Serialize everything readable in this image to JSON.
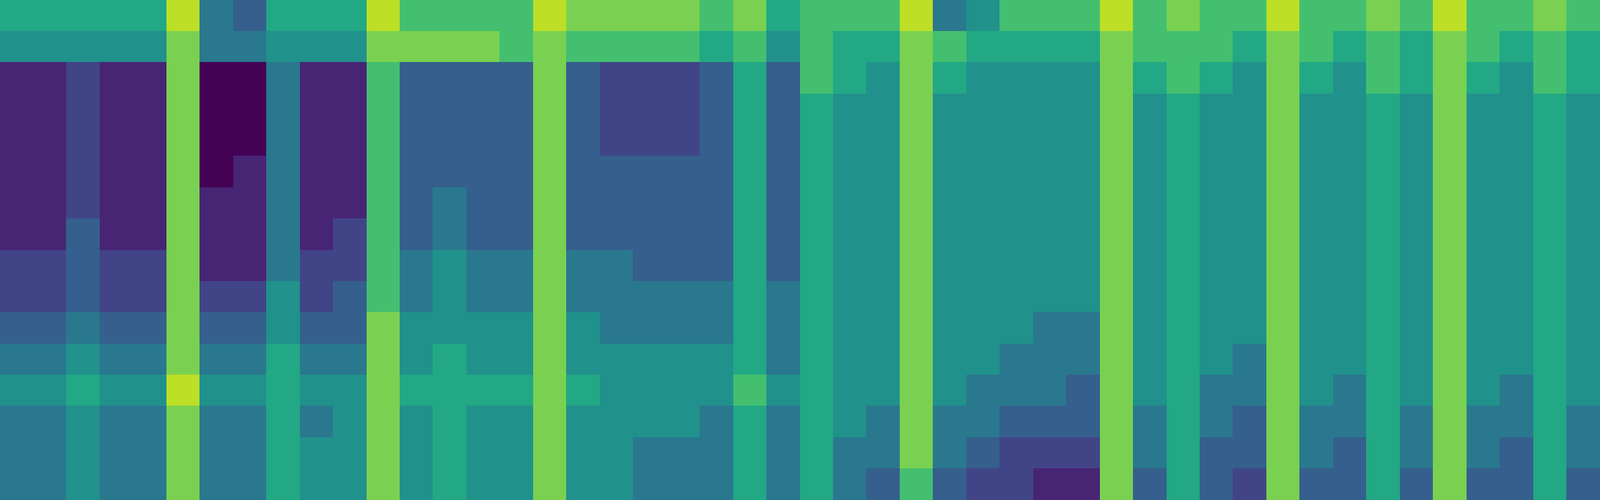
{
  "chart_data": {
    "type": "heatmap",
    "color": "viridis",
    "tick_labels": false,
    "zlim": [
      0,
      10
    ],
    "cells": [
      [
        6,
        5,
        1,
        1,
        1,
        1,
        1,
        1,
        2,
        2,
        3,
        4,
        5,
        4,
        4,
        4
      ],
      [
        6,
        5,
        1,
        1,
        1,
        1,
        1,
        1,
        2,
        2,
        3,
        4,
        5,
        4,
        4,
        4
      ],
      [
        6,
        5,
        2,
        2,
        2,
        2,
        2,
        3,
        3,
        3,
        4,
        5,
        6,
        5,
        5,
        5
      ],
      [
        6,
        5,
        1,
        1,
        1,
        1,
        1,
        1,
        2,
        2,
        3,
        4,
        5,
        4,
        4,
        4
      ],
      [
        6,
        5,
        1,
        1,
        1,
        1,
        1,
        1,
        2,
        2,
        3,
        4,
        5,
        4,
        4,
        4
      ],
      [
        9,
        8,
        8,
        8,
        8,
        8,
        8,
        8,
        8,
        8,
        8,
        8,
        9,
        8,
        8,
        8
      ],
      [
        4,
        4,
        0,
        0,
        0,
        0,
        1,
        1,
        1,
        2,
        3,
        4,
        5,
        4,
        4,
        4
      ],
      [
        3,
        4,
        0,
        0,
        0,
        1,
        1,
        1,
        1,
        2,
        3,
        4,
        5,
        4,
        4,
        4
      ],
      [
        6,
        5,
        4,
        4,
        4,
        4,
        4,
        4,
        4,
        5,
        5,
        6,
        6,
        6,
        6,
        6
      ],
      [
        6,
        5,
        1,
        1,
        1,
        1,
        1,
        1,
        2,
        2,
        3,
        4,
        5,
        4,
        5,
        5
      ],
      [
        6,
        5,
        1,
        1,
        1,
        1,
        1,
        2,
        2,
        3,
        3,
        4,
        5,
        5,
        5,
        5
      ],
      [
        9,
        8,
        7,
        7,
        7,
        7,
        7,
        7,
        7,
        7,
        8,
        8,
        8,
        8,
        8,
        8
      ],
      [
        7,
        8,
        3,
        3,
        3,
        3,
        3,
        3,
        4,
        4,
        5,
        5,
        6,
        5,
        5,
        5
      ],
      [
        7,
        8,
        3,
        3,
        3,
        3,
        4,
        4,
        5,
        5,
        5,
        6,
        6,
        6,
        6,
        6
      ],
      [
        7,
        8,
        3,
        3,
        3,
        3,
        3,
        3,
        4,
        4,
        5,
        5,
        6,
        5,
        5,
        5
      ],
      [
        7,
        7,
        3,
        3,
        3,
        3,
        3,
        3,
        4,
        4,
        5,
        5,
        6,
        5,
        5,
        5
      ],
      [
        9,
        8,
        8,
        8,
        8,
        8,
        8,
        8,
        8,
        8,
        8,
        8,
        8,
        8,
        8,
        8
      ],
      [
        8,
        7,
        3,
        3,
        3,
        3,
        3,
        3,
        4,
        4,
        5,
        5,
        6,
        5,
        5,
        5
      ],
      [
        8,
        7,
        2,
        2,
        2,
        3,
        3,
        3,
        4,
        4,
        4,
        5,
        5,
        5,
        5,
        5
      ],
      [
        8,
        7,
        2,
        2,
        2,
        3,
        3,
        3,
        3,
        4,
        4,
        5,
        5,
        5,
        4,
        4
      ],
      [
        8,
        7,
        2,
        2,
        2,
        3,
        3,
        3,
        3,
        4,
        4,
        5,
        5,
        5,
        4,
        4
      ],
      [
        7,
        6,
        3,
        3,
        3,
        3,
        3,
        3,
        3,
        4,
        4,
        5,
        5,
        4,
        4,
        4
      ],
      [
        8,
        7,
        6,
        6,
        6,
        6,
        6,
        6,
        6,
        6,
        6,
        6,
        7,
        6,
        6,
        6
      ],
      [
        6,
        5,
        3,
        3,
        3,
        3,
        3,
        3,
        3,
        4,
        4,
        4,
        5,
        4,
        4,
        4
      ],
      [
        7,
        7,
        7,
        6,
        6,
        6,
        6,
        6,
        6,
        6,
        6,
        6,
        6,
        6,
        6,
        6
      ],
      [
        7,
        6,
        6,
        5,
        5,
        5,
        5,
        5,
        5,
        5,
        5,
        5,
        5,
        5,
        4,
        4
      ],
      [
        7,
        6,
        5,
        5,
        5,
        5,
        5,
        5,
        5,
        5,
        5,
        5,
        5,
        4,
        4,
        3
      ],
      [
        9,
        8,
        8,
        8,
        8,
        8,
        8,
        8,
        8,
        8,
        8,
        8,
        8,
        8,
        8,
        7
      ],
      [
        4,
        7,
        6,
        5,
        5,
        5,
        5,
        5,
        5,
        5,
        5,
        5,
        5,
        4,
        4,
        3
      ],
      [
        5,
        6,
        5,
        5,
        5,
        5,
        5,
        5,
        5,
        5,
        5,
        5,
        4,
        4,
        3,
        2
      ],
      [
        7,
        6,
        5,
        5,
        5,
        5,
        5,
        5,
        5,
        5,
        5,
        4,
        4,
        3,
        2,
        2
      ],
      [
        7,
        6,
        5,
        5,
        5,
        5,
        5,
        5,
        5,
        5,
        4,
        4,
        4,
        3,
        2,
        1
      ],
      [
        7,
        6,
        5,
        5,
        5,
        5,
        5,
        5,
        5,
        5,
        4,
        4,
        3,
        3,
        2,
        1
      ],
      [
        9,
        8,
        8,
        8,
        8,
        8,
        8,
        8,
        8,
        8,
        8,
        8,
        8,
        8,
        8,
        8
      ],
      [
        7,
        7,
        6,
        5,
        5,
        5,
        5,
        5,
        5,
        5,
        5,
        5,
        5,
        4,
        4,
        3
      ],
      [
        8,
        7,
        7,
        6,
        6,
        6,
        6,
        6,
        6,
        6,
        6,
        6,
        6,
        6,
        6,
        6
      ],
      [
        7,
        7,
        6,
        5,
        5,
        5,
        5,
        5,
        5,
        5,
        5,
        5,
        4,
        4,
        3,
        3
      ],
      [
        7,
        6,
        5,
        5,
        5,
        5,
        5,
        5,
        5,
        5,
        5,
        4,
        4,
        3,
        3,
        2
      ],
      [
        9,
        8,
        8,
        8,
        8,
        8,
        8,
        8,
        8,
        8,
        8,
        8,
        8,
        8,
        8,
        8
      ],
      [
        7,
        7,
        6,
        5,
        5,
        5,
        5,
        5,
        5,
        5,
        5,
        5,
        5,
        4,
        4,
        3
      ],
      [
        7,
        6,
        5,
        5,
        5,
        5,
        5,
        5,
        5,
        5,
        5,
        5,
        4,
        4,
        3,
        3
      ],
      [
        8,
        7,
        7,
        6,
        6,
        6,
        6,
        6,
        6,
        6,
        6,
        6,
        6,
        6,
        6,
        6
      ],
      [
        7,
        6,
        6,
        5,
        5,
        5,
        5,
        5,
        5,
        5,
        5,
        5,
        5,
        4,
        4,
        3
      ],
      [
        9,
        8,
        8,
        8,
        8,
        8,
        8,
        8,
        8,
        8,
        8,
        8,
        8,
        8,
        8,
        8
      ],
      [
        7,
        7,
        6,
        5,
        5,
        5,
        5,
        5,
        5,
        5,
        5,
        5,
        5,
        4,
        4,
        3
      ],
      [
        7,
        6,
        5,
        5,
        5,
        5,
        5,
        5,
        5,
        5,
        5,
        5,
        4,
        4,
        3,
        3
      ],
      [
        8,
        7,
        7,
        6,
        6,
        6,
        6,
        6,
        6,
        6,
        6,
        6,
        6,
        6,
        6,
        6
      ],
      [
        7,
        6,
        6,
        5,
        5,
        5,
        5,
        5,
        5,
        5,
        5,
        5,
        5,
        4,
        4,
        3
      ]
    ]
  }
}
